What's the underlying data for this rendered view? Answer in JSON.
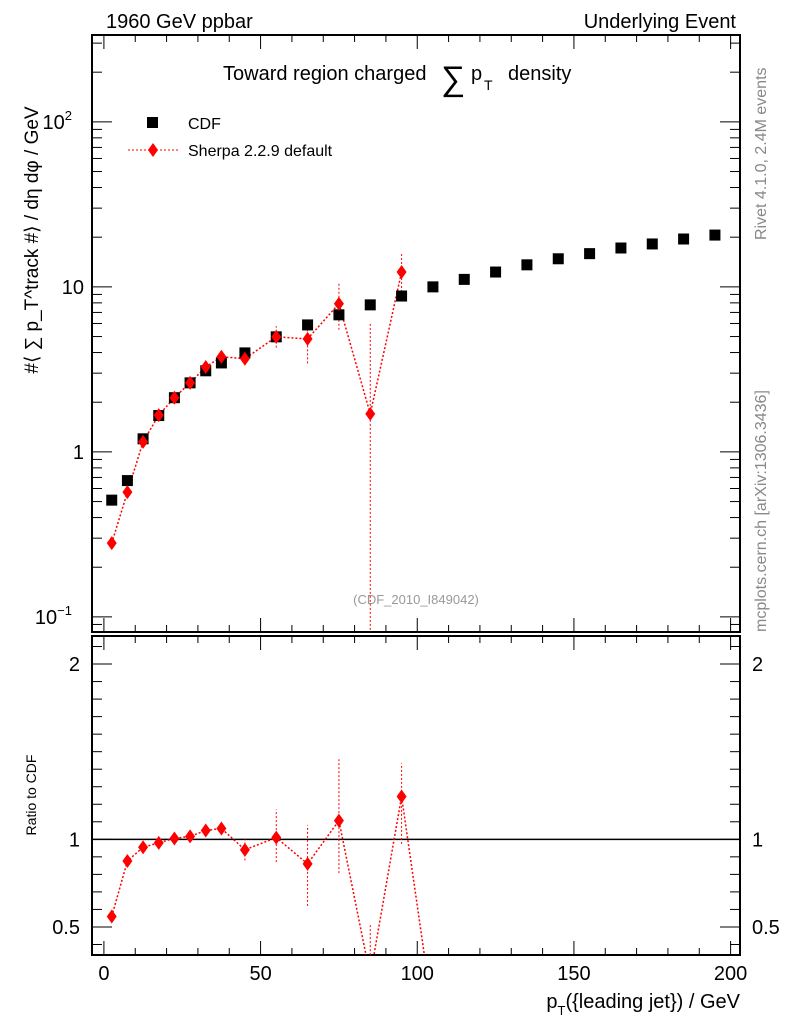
{
  "header": {
    "left": "1960 GeV ppbar",
    "right": "Underlying Event"
  },
  "side": {
    "rivet": "Rivet 4.1.0,  2.4M events",
    "mcplots": "mcplots.cern.ch [arXiv:1306.3436]"
  },
  "chart_data": {
    "type": "scatter",
    "title": "Toward region charged ∑ p_T density",
    "title_main": "Toward region charged",
    "title_sum": "∑",
    "title_p": "p",
    "title_sub": "T",
    "title_end": "density",
    "analysis_label": "(CDF_2010_I849042)",
    "ylabel": "#⟨ ∑ p_T^track #⟩ / dη dφ / GeV",
    "ylabel_text": "#⟨ ∑ p",
    "ylabel_sup": "track",
    "ylabel_sub": "T",
    "ylabel_end": " #⟩ / dη dφ / GeV",
    "xlabel": "p_T({leading jet}) / GeV",
    "xlabel_p": "p",
    "xlabel_sub": "T",
    "xlabel_end": "({leading jet}) / GeV",
    "ratio_ylabel": "Ratio to CDF",
    "xlim": [
      -3.8,
      203
    ],
    "ylim": [
      0.081,
      336
    ],
    "yscale": "log",
    "ratio_ylim": [
      0.34,
      2.16
    ],
    "xticks": [
      "0",
      "50",
      "100",
      "150",
      "200"
    ],
    "yticks": [
      "10^-1",
      "1",
      "10",
      "10^2"
    ],
    "ratio_yticks": [
      "0.5",
      "1",
      "2"
    ],
    "legend_position": "top-left",
    "series": [
      {
        "name": "CDF",
        "color": "#000000",
        "marker": "square",
        "x": [
          2.5,
          7.5,
          12.5,
          17.5,
          22.5,
          27.5,
          32.5,
          37.5,
          45,
          55,
          65,
          75,
          85,
          95,
          105,
          115,
          125,
          135,
          145,
          155,
          165,
          175,
          185,
          195
        ],
        "y": [
          0.51,
          0.67,
          1.2,
          1.66,
          2.13,
          2.62,
          3.1,
          3.46,
          3.98,
          4.98,
          5.88,
          6.77,
          7.78,
          8.8,
          10,
          11.1,
          12.3,
          13.6,
          14.8,
          15.9,
          17.2,
          18.2,
          19.5,
          20.6
        ]
      },
      {
        "name": "Sherpa 2.2.9 default",
        "color": "#ff0000",
        "marker": "diamond",
        "x": [
          2.5,
          7.5,
          12.5,
          17.5,
          22.5,
          27.5,
          32.5,
          37.5,
          45,
          55,
          65,
          75,
          85,
          95
        ],
        "y": [
          0.28,
          0.57,
          1.15,
          1.67,
          2.13,
          2.62,
          3.27,
          3.77,
          3.67,
          4.98,
          4.84,
          7.9,
          1.7,
          12.3
        ],
        "yerr_low": [
          0.01,
          0.02,
          0.03,
          0.04,
          0.05,
          0.06,
          0.1,
          0.12,
          0.25,
          0.7,
          1.4,
          2.4,
          1.69,
          3.5
        ],
        "yerr_high": [
          0.01,
          0.02,
          0.03,
          0.04,
          0.05,
          0.06,
          0.1,
          0.12,
          0.25,
          0.8,
          1.2,
          2.7,
          4.3,
          3.8
        ],
        "ratio_x": [
          2.5,
          7.5,
          12.5,
          17.5,
          22.5,
          27.5,
          32.5,
          37.5,
          45,
          55,
          65,
          75,
          85,
          95,
          105
        ],
        "ratio": [
          0.56,
          0.876,
          0.955,
          0.98,
          1.005,
          1.017,
          1.05,
          1.062,
          0.94,
          1.01,
          0.86,
          1.107,
          0.22,
          1.244,
          0
        ],
        "ratio_err_low": [
          0.01,
          0.01,
          0.01,
          0.01,
          0.01,
          0.015,
          0.025,
          0.03,
          0.06,
          0.14,
          0.24,
          0.3,
          0.2,
          0.27,
          0
        ],
        "ratio_err_high": [
          0.01,
          0.01,
          0.01,
          0.01,
          0.01,
          0.015,
          0.025,
          0.03,
          0.06,
          0.16,
          0.22,
          0.35,
          0.3,
          0.19,
          0
        ]
      }
    ]
  }
}
